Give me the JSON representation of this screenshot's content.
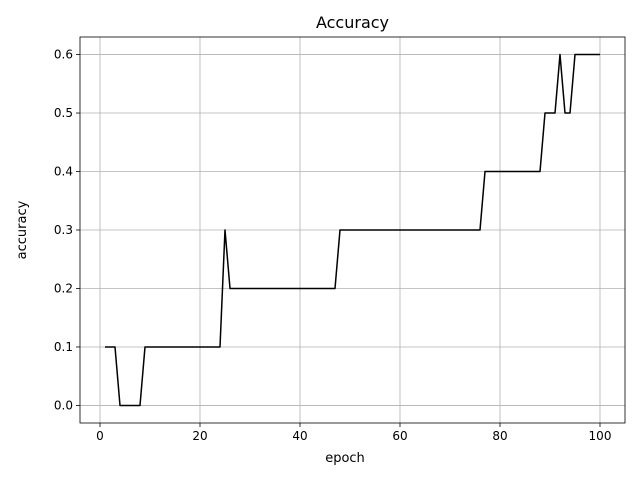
{
  "chart_data": {
    "type": "line",
    "title": "Accuracy",
    "xlabel": "epoch",
    "ylabel": "accuracy",
    "xlim": [
      -4,
      105
    ],
    "ylim": [
      -0.03,
      0.63
    ],
    "xticks": [
      0,
      20,
      40,
      60,
      80,
      100
    ],
    "yticks": [
      0.0,
      0.1,
      0.2,
      0.3,
      0.4,
      0.5,
      0.6
    ],
    "xtick_labels": [
      "0",
      "20",
      "40",
      "60",
      "80",
      "100"
    ],
    "ytick_labels": [
      "0.0",
      "0.1",
      "0.2",
      "0.3",
      "0.4",
      "0.5",
      "0.6"
    ],
    "grid": true,
    "legend": "none",
    "series": [
      {
        "color": "#000000",
        "x": [
          1,
          3,
          4,
          8,
          9,
          24,
          25,
          26,
          47,
          48,
          76,
          77,
          88,
          89,
          91,
          92,
          93,
          94,
          95,
          100
        ],
        "y": [
          0.1,
          0.1,
          0.0,
          0.0,
          0.1,
          0.1,
          0.3,
          0.2,
          0.2,
          0.3,
          0.3,
          0.4,
          0.4,
          0.5,
          0.5,
          0.6,
          0.5,
          0.5,
          0.6,
          0.6
        ]
      }
    ]
  }
}
